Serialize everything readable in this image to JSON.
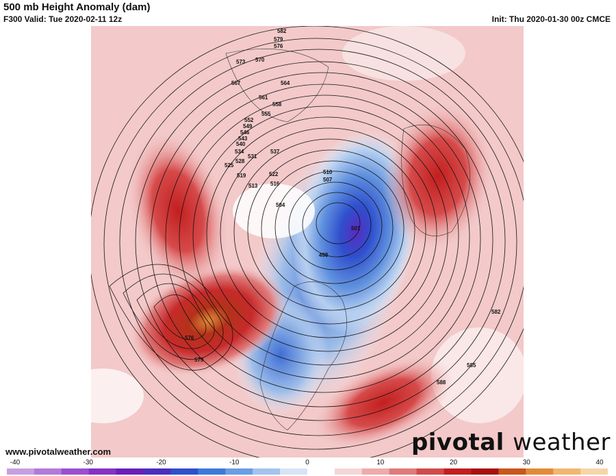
{
  "header": {
    "title": "500 mb Height Anomaly (dam)",
    "valid": "F300 Valid: Tue 2020-02-11 12z",
    "init": "Init: Thu 2020-01-30 00z CMCE"
  },
  "footer": {
    "url": "www.pivotalweather.com",
    "brand_part1": "pivotal",
    "brand_part2": "weather"
  },
  "colorbar": {
    "ticks": [
      "-40",
      "-30",
      "-20",
      "-10",
      "0",
      "10",
      "20",
      "30",
      "40"
    ],
    "min": -40,
    "max": 40,
    "colors": [
      "#c79fe0",
      "#b37ad8",
      "#9b4fcf",
      "#8432c4",
      "#6a1fbb",
      "#4b2fbf",
      "#2f4fcd",
      "#3f78d9",
      "#6a9de3",
      "#a4c3ec",
      "#d6e4f5",
      "#ffffff",
      "#f6d6d6",
      "#eeaaaa",
      "#e07a7a",
      "#d14a4a",
      "#c21f1f",
      "#a81010",
      "#c9561c",
      "#e18a38",
      "#f0b672",
      "#f6d5a8"
    ]
  },
  "contour_labels": [
    "582",
    "579",
    "576",
    "573",
    "570",
    "567",
    "564",
    "561",
    "558",
    "555",
    "552",
    "549",
    "546",
    "543",
    "540",
    "537",
    "534",
    "531",
    "528",
    "525",
    "522",
    "519",
    "516",
    "513",
    "510",
    "507",
    "504",
    "501",
    "498",
    "582",
    "585",
    "588",
    "576",
    "579"
  ],
  "colors": {
    "positive_anomaly": "#c21f1f",
    "strong_positive": "#e18a38",
    "negative_anomaly": "#2f4fcd",
    "strong_negative": "#6a1fbb",
    "neutral": "#ffffff"
  }
}
